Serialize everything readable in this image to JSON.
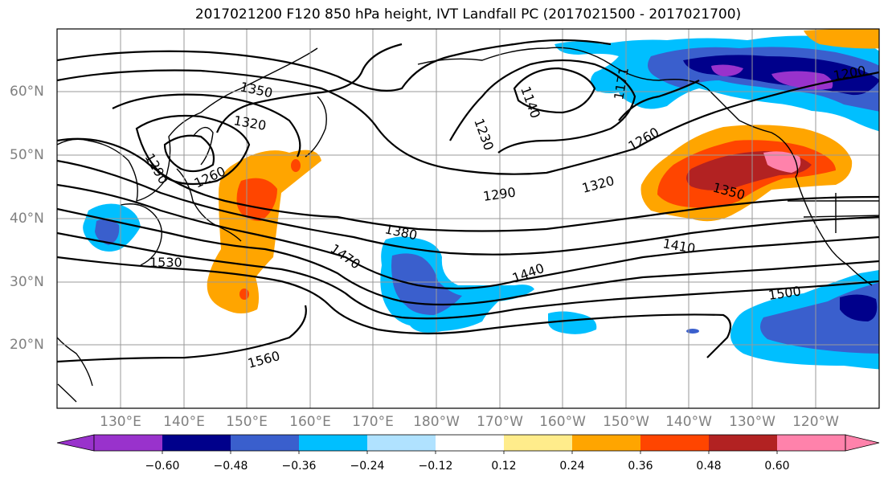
{
  "title": "2017021200 F120 850 hPa height, IVT Landfall PC (2017021500 - 2017021700)",
  "lon_labels": [
    "130°E",
    "140°E",
    "150°E",
    "160°E",
    "170°E",
    "180°W",
    "170°W",
    "160°W",
    "150°W",
    "140°W",
    "130°W",
    "120°W"
  ],
  "lat_labels": [
    "60°N",
    "50°N",
    "40°N",
    "30°N",
    "20°N"
  ],
  "contour_labels": [
    "1350",
    "1320",
    "1290",
    "1260",
    "1530",
    "1230",
    "1140",
    "1171",
    "1200",
    "1260",
    "1320",
    "1290",
    "1350",
    "1380",
    "1470",
    "1440",
    "1410",
    "1500",
    "1560"
  ],
  "colorbar": {
    "tick_labels": [
      "−0.60",
      "−0.48",
      "−0.36",
      "−0.24",
      "−0.12",
      "0.12",
      "0.24",
      "0.36",
      "0.48",
      "0.60"
    ],
    "colors": [
      "#9932CC",
      "#00008B",
      "#3A5FCD",
      "#00BFFF",
      "#B0E2FF",
      "#FFFFFF",
      "#FFEC8B",
      "#FFA500",
      "#FF4500",
      "#B22222",
      "#FF82AB"
    ]
  }
}
